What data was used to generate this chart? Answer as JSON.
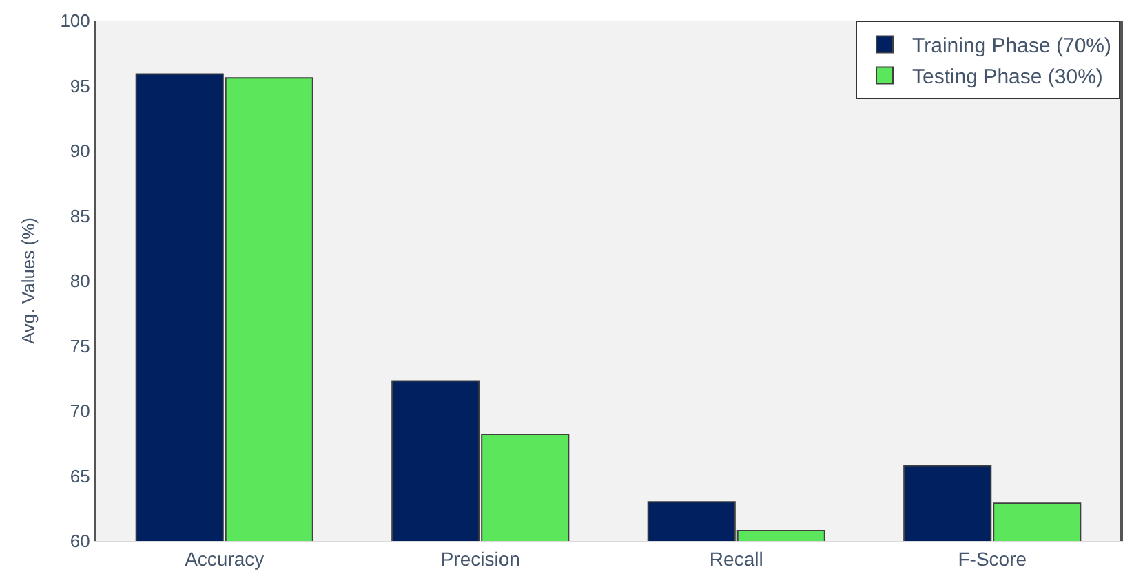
{
  "chart_data": {
    "type": "bar",
    "ylabel": "Avg. Values (%)",
    "categories": [
      "Accuracy",
      "Precision",
      "Recall",
      "F-Score"
    ],
    "series": [
      {
        "name": "Training Phase (70%)",
        "color": "#002060",
        "values": [
          95.9,
          72.3,
          63.0,
          65.8
        ]
      },
      {
        "name": "Testing Phase (30%)",
        "color": "#5ce65c",
        "values": [
          95.6,
          68.2,
          60.8,
          62.9
        ]
      }
    ],
    "ylim": [
      60,
      100
    ],
    "yticks": [
      60,
      65,
      70,
      75,
      80,
      85,
      90,
      95,
      100
    ],
    "grid": false,
    "legend": "top right"
  }
}
